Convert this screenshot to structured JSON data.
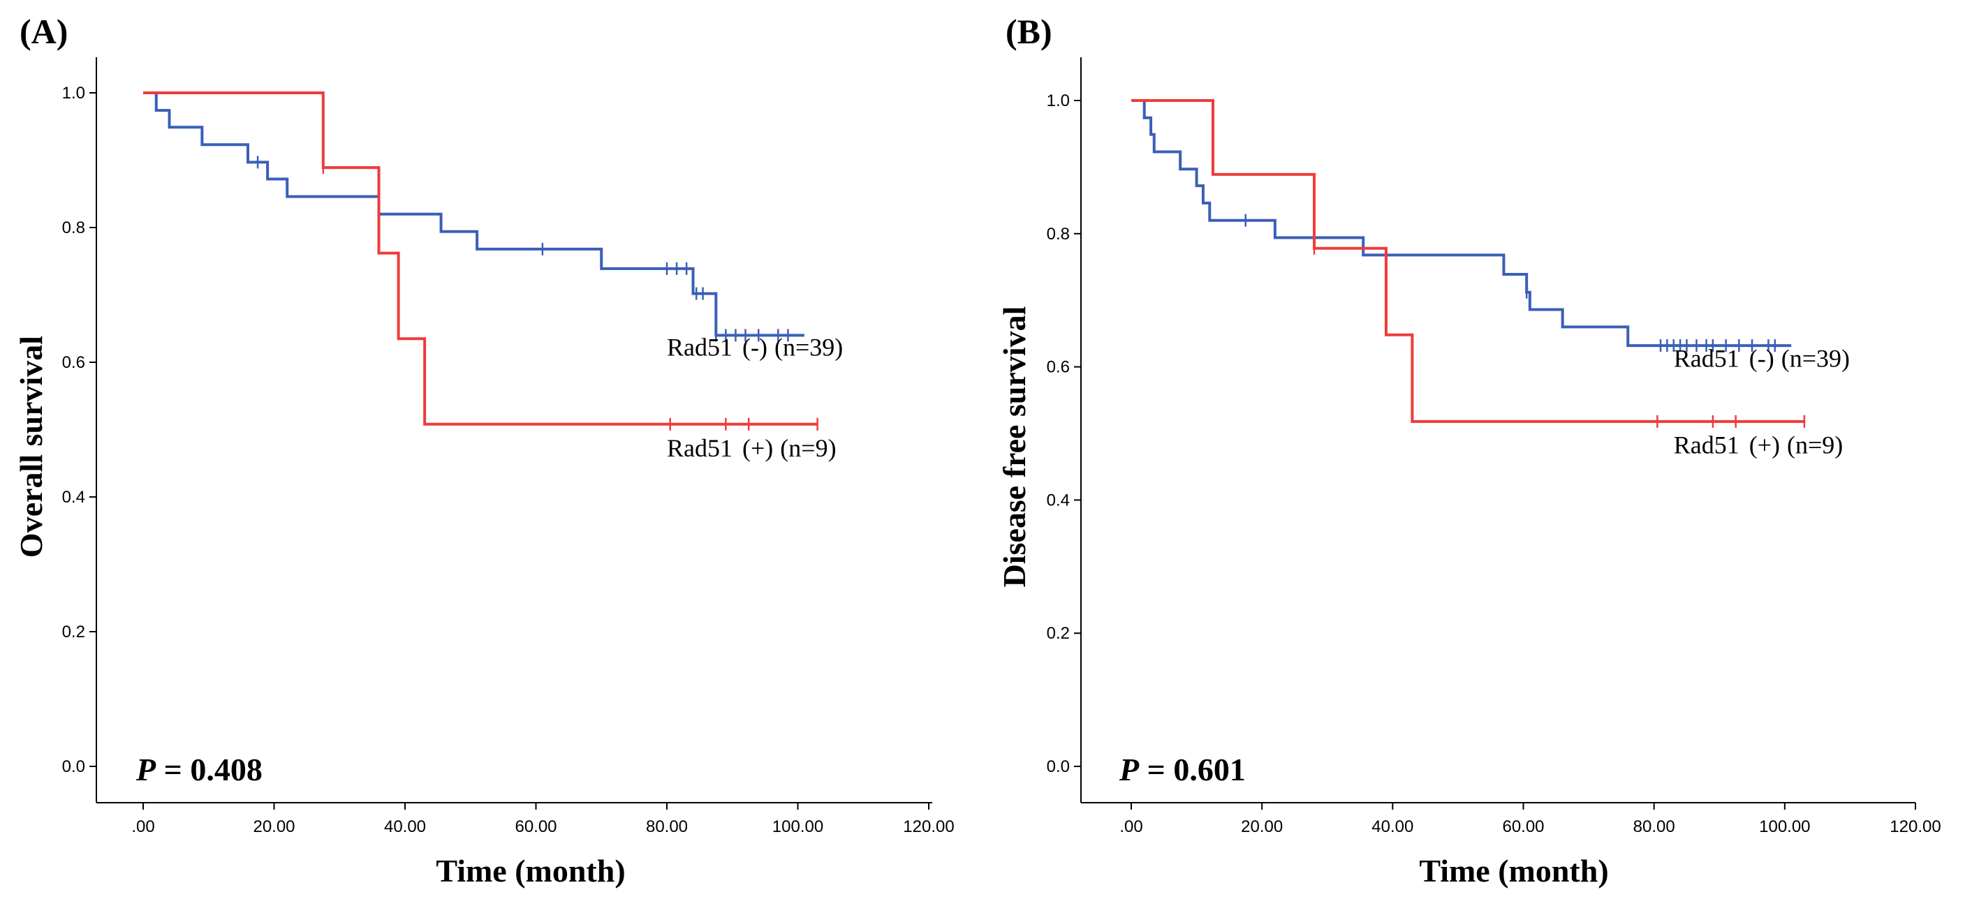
{
  "chart_data": [
    {
      "type": "line",
      "subtype": "kaplan-meier",
      "panel_label": "(A)",
      "title": "",
      "xlabel": "Time (month)",
      "ylabel": "Overall survival",
      "xlim": [
        0,
        120
      ],
      "ylim": [
        0,
        1.0
      ],
      "x_ticks": [
        0,
        20,
        40,
        60,
        80,
        100,
        120
      ],
      "x_tick_labels": [
        ".00",
        "20.00",
        "40.00",
        "60.00",
        "80.00",
        "100.00",
        "120.00"
      ],
      "y_ticks": [
        0,
        0.2,
        0.4,
        0.6,
        0.8,
        1.0
      ],
      "y_tick_labels": [
        "0.0",
        "0.2",
        "0.4",
        "0.6",
        "0.8",
        "1.0"
      ],
      "p_value": {
        "prefix": "P",
        "text": " = 0.408"
      },
      "series": [
        {
          "name": "Rad51 (-) (n=39)",
          "label_parts": [
            "Rad51",
            "(-)",
            "(n=39)"
          ],
          "color": "#3a5fb8",
          "label_anchor": [
            80,
            0.61
          ],
          "steps": [
            [
              0,
              1.0
            ],
            [
              2,
              0.974
            ],
            [
              4,
              0.949
            ],
            [
              9,
              0.923
            ],
            [
              16,
              0.897
            ],
            [
              19,
              0.872
            ],
            [
              22,
              0.846
            ],
            [
              36,
              0.82
            ],
            [
              45.5,
              0.794
            ],
            [
              51,
              0.768
            ],
            [
              70,
              0.739
            ],
            [
              84,
              0.702
            ],
            [
              87.5,
              0.64
            ],
            [
              101,
              0.64
            ]
          ],
          "censor_times": [
            17.5,
            61,
            80,
            81.5,
            83,
            84.5,
            85.5,
            87.5,
            89,
            90.5,
            92,
            94,
            97,
            98.5
          ]
        },
        {
          "name": "Rad51 (+) (n=9)",
          "label_parts": [
            "Rad51",
            "(+)",
            "(n=9)"
          ],
          "color": "#ef3b3b",
          "label_anchor": [
            80,
            0.46
          ],
          "steps": [
            [
              0,
              1.0
            ],
            [
              27.5,
              0.889
            ],
            [
              36,
              0.762
            ],
            [
              39,
              0.635
            ],
            [
              43,
              0.508
            ],
            [
              103,
              0.508
            ]
          ],
          "censor_times": [
            27.5,
            80.5,
            89,
            92.5,
            103
          ]
        }
      ]
    },
    {
      "type": "line",
      "subtype": "kaplan-meier",
      "panel_label": "(B)",
      "title": "",
      "xlabel": "Time (month)",
      "ylabel": "Disease free survival",
      "xlim": [
        0,
        120
      ],
      "ylim": [
        0,
        1.0
      ],
      "x_ticks": [
        0,
        20,
        40,
        60,
        80,
        100,
        120
      ],
      "x_tick_labels": [
        ".00",
        "20.00",
        "40.00",
        "60.00",
        "80.00",
        "100.00",
        "120.00"
      ],
      "y_ticks": [
        0,
        0.2,
        0.4,
        0.6,
        0.8,
        1.0
      ],
      "y_tick_labels": [
        "0.0",
        "0.2",
        "0.4",
        "0.6",
        "0.8",
        "1.0"
      ],
      "p_value": {
        "prefix": "P",
        "text": " = 0.601"
      },
      "series": [
        {
          "name": "Rad51 (-) (n=39)",
          "label_parts": [
            "Rad51",
            "(-)",
            "(n=39)"
          ],
          "color": "#3a5fb8",
          "label_anchor": [
            83,
            0.6
          ],
          "steps": [
            [
              0,
              1.0
            ],
            [
              2,
              0.974
            ],
            [
              3,
              0.949
            ],
            [
              3.5,
              0.923
            ],
            [
              7.5,
              0.897
            ],
            [
              10,
              0.872
            ],
            [
              11,
              0.846
            ],
            [
              12,
              0.82
            ],
            [
              22,
              0.794
            ],
            [
              35.5,
              0.768
            ],
            [
              57,
              0.739
            ],
            [
              60.5,
              0.712
            ],
            [
              61,
              0.686
            ],
            [
              66,
              0.66
            ],
            [
              76,
              0.632
            ],
            [
              101,
              0.632
            ]
          ],
          "censor_times": [
            17.5,
            60.5,
            81,
            82,
            83,
            84,
            85,
            86.5,
            88,
            89,
            91,
            93,
            95,
            97.5,
            98.5
          ]
        },
        {
          "name": "Rad51 (+) (n=9)",
          "label_parts": [
            "Rad51",
            "(+)",
            "(n=9)"
          ],
          "color": "#ef3b3b",
          "label_anchor": [
            83,
            0.47
          ],
          "steps": [
            [
              0,
              1.0
            ],
            [
              12.5,
              0.889
            ],
            [
              28,
              0.778
            ],
            [
              39,
              0.648
            ],
            [
              43,
              0.518
            ],
            [
              103,
              0.518
            ]
          ],
          "censor_times": [
            28,
            80.5,
            89,
            92.5,
            103
          ]
        }
      ]
    }
  ]
}
